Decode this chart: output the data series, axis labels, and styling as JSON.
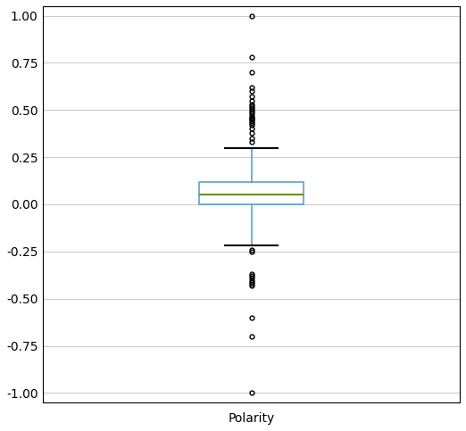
{
  "xlabel": "Polarity",
  "ylabel": "",
  "ylim": [
    -1.05,
    1.05
  ],
  "yticks": [
    -1.0,
    -0.75,
    -0.5,
    -0.25,
    0.0,
    0.25,
    0.5,
    0.75,
    1.0
  ],
  "box_stats": {
    "q1": 0.0,
    "median": 0.05,
    "q3": 0.12,
    "whislo": -0.22,
    "whishi": 0.3
  },
  "outliers_upper": [
    0.33,
    0.35,
    0.38,
    0.4,
    0.42,
    0.43,
    0.44,
    0.45,
    0.455,
    0.46,
    0.47,
    0.48,
    0.49,
    0.5,
    0.51,
    0.52,
    0.53,
    0.55,
    0.57,
    0.6,
    0.62,
    0.7,
    0.78,
    1.0
  ],
  "outliers_lower": [
    -0.24,
    -0.25,
    -0.37,
    -0.38,
    -0.39,
    -0.4,
    -0.41,
    -0.42,
    -0.43,
    -0.6,
    -0.7,
    -1.0
  ],
  "box_color": "#5ba3c9",
  "median_color": "#6b8e23",
  "whisker_color": "#000000",
  "cap_color": "#000000",
  "flier_color": "#000000",
  "background_color": "#ffffff",
  "grid_color": "#cccccc",
  "figsize": [
    5.22,
    4.83
  ],
  "dpi": 100,
  "box_width": 0.25
}
